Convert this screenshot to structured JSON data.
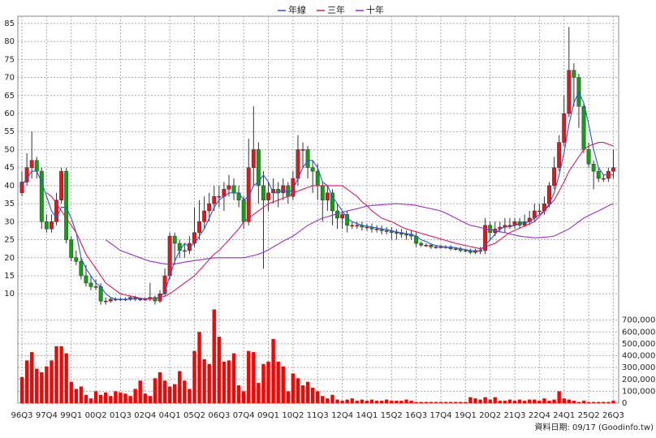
{
  "chart_data": {
    "type": "candlestick",
    "source_note": "資料日期: 09/17  (Goodinfo.tw)",
    "categories": [
      "96Q3",
      null,
      null,
      null,
      null,
      "97Q4",
      null,
      null,
      null,
      null,
      "99Q1",
      null,
      null,
      null,
      null,
      "00Q2",
      null,
      null,
      null,
      null,
      "01Q3",
      null,
      null,
      null,
      null,
      "02Q4",
      null,
      null,
      null,
      null,
      "04Q1",
      null,
      null,
      null,
      null,
      "05Q2",
      null,
      null,
      null,
      null,
      "06Q3",
      null,
      null,
      null,
      null,
      "07Q4",
      null,
      null,
      null,
      null,
      "09Q1",
      null,
      null,
      null,
      null,
      "10Q2",
      null,
      null,
      null,
      null,
      "11Q3",
      null,
      null,
      null,
      null,
      "12Q4",
      null,
      null,
      null,
      null,
      "14Q1",
      null,
      null,
      null,
      null,
      "15Q2",
      null,
      null,
      null,
      null,
      "16Q3",
      null,
      null,
      null,
      null,
      "17Q4",
      null,
      null,
      null,
      null,
      "19Q1",
      null,
      null,
      null,
      null,
      "20Q2",
      null,
      null,
      null,
      null,
      "21Q3",
      null,
      null,
      null,
      null,
      "22Q4",
      null,
      null,
      null,
      null,
      "24Q1",
      null,
      null,
      null,
      null,
      "25Q2",
      null,
      null,
      null,
      null,
      "26Q3"
    ],
    "up_color": "#e8131f",
    "down_color": "#10a010",
    "open": [
      38,
      41,
      45,
      47,
      44,
      30,
      28,
      30,
      36,
      44,
      25,
      20,
      19,
      15,
      13,
      12,
      12,
      8,
      8,
      8.5,
      8.5,
      8.5,
      8.5,
      9,
      8.5,
      8.5,
      8.5,
      9,
      8,
      10,
      15,
      26,
      24,
      22,
      22,
      24,
      27,
      30,
      33,
      35,
      37,
      37,
      39,
      40,
      38,
      36,
      30,
      45,
      50,
      40,
      36,
      38,
      39,
      38,
      40,
      37,
      42,
      50,
      50,
      45,
      44,
      40,
      36,
      38,
      33,
      31,
      32,
      29,
      29,
      29,
      28.5,
      28.5,
      28,
      28,
      27.5,
      27.5,
      27,
      27,
      26.5,
      26.5,
      26,
      24,
      23.5,
      23.5,
      23,
      23,
      23,
      23,
      22.5,
      22.5,
      22,
      22,
      21.5,
      22,
      22,
      29,
      27,
      28,
      28.5,
      29,
      29,
      30,
      29,
      30,
      31,
      33,
      33,
      35,
      40,
      45,
      52,
      60,
      72,
      70,
      62,
      50,
      46,
      44,
      42,
      42,
      44
    ],
    "high": [
      44,
      49,
      55,
      48,
      45,
      32,
      32,
      38,
      45,
      45,
      26,
      22,
      20,
      18,
      15,
      14,
      13,
      9,
      9,
      9,
      9,
      9,
      9.5,
      9.5,
      9,
      9,
      13,
      9.5,
      11,
      17,
      27,
      27,
      25,
      24,
      26,
      34,
      36,
      37,
      38,
      40,
      40,
      41,
      43,
      42,
      40,
      37,
      53,
      62,
      52,
      44,
      41,
      42,
      41,
      42,
      41,
      44,
      54,
      52,
      51,
      47,
      46,
      41,
      40,
      39,
      35,
      33,
      33,
      30,
      30,
      30,
      29.5,
      29.5,
      29,
      29,
      28.5,
      28.5,
      28,
      28,
      27.5,
      27.5,
      27,
      24.5,
      24,
      24,
      23.5,
      23.5,
      23.5,
      23.5,
      23,
      23,
      22.5,
      22.5,
      22.5,
      23,
      31,
      30,
      30,
      30,
      31,
      31,
      31,
      31,
      32,
      33,
      35,
      35,
      37,
      41,
      48,
      54,
      65,
      84,
      74,
      71,
      63,
      52,
      47,
      45,
      43,
      45,
      50
    ],
    "low": [
      37,
      40,
      42,
      42,
      28,
      27,
      27,
      29,
      35,
      24,
      19,
      18,
      14,
      12,
      11,
      11,
      7,
      7,
      7.5,
      8,
      8,
      8,
      8,
      8,
      8,
      8,
      8,
      7,
      7.5,
      9.5,
      14,
      18,
      20,
      20,
      21,
      23,
      25,
      28,
      30,
      33,
      34,
      33,
      37,
      36,
      34,
      28,
      29,
      40,
      35,
      17,
      33,
      35,
      34,
      36,
      35,
      36,
      40,
      45,
      42,
      38,
      36,
      30,
      33,
      29,
      28,
      28,
      27,
      28,
      28,
      27.5,
      27.5,
      27,
      27,
      26.5,
      26.5,
      25,
      25,
      25.5,
      25,
      25,
      23,
      23,
      23,
      22.5,
      22.5,
      22.5,
      22.5,
      22,
      22,
      21.5,
      21.5,
      21,
      21,
      21,
      21,
      25,
      26,
      27,
      27,
      28,
      28,
      28,
      28.5,
      29,
      30,
      32,
      32,
      34,
      39,
      44,
      51,
      59,
      62,
      56,
      49,
      45,
      39,
      41,
      41,
      41,
      42
    ],
    "close": [
      41,
      45,
      47,
      44,
      30,
      28,
      30,
      36,
      44,
      25,
      20,
      19,
      15,
      13,
      12,
      12,
      8,
      8,
      8.5,
      8.5,
      8.5,
      8.5,
      9,
      8.5,
      8.5,
      8.5,
      9,
      8,
      10,
      15,
      26,
      24,
      22,
      22,
      24,
      27,
      30,
      33,
      35,
      37,
      37,
      39,
      40,
      38,
      36,
      30,
      45,
      50,
      40,
      36,
      38,
      39,
      38,
      40,
      37,
      42,
      50,
      50,
      45,
      44,
      40,
      36,
      38,
      33,
      31,
      32,
      29,
      29,
      29,
      28.5,
      28.5,
      28,
      28,
      27.5,
      27.5,
      27,
      27,
      26.5,
      26.5,
      26,
      24,
      23.5,
      23.5,
      23,
      23,
      23,
      23,
      22.5,
      22.5,
      22,
      22,
      21.5,
      22,
      22,
      29,
      27,
      28,
      28.5,
      29,
      29,
      30,
      29,
      30,
      31,
      33,
      33,
      35,
      40,
      45,
      52,
      60,
      72,
      70,
      62,
      50,
      46,
      44,
      42,
      42,
      44,
      45
    ],
    "series": [
      {
        "name": "年線",
        "color": "#2457d6",
        "values": [
          40,
          42,
          44,
          44,
          41,
          37,
          33,
          31,
          34,
          34,
          31,
          27,
          20,
          17,
          15,
          13,
          12,
          10,
          9,
          8.5,
          8.5,
          8.5,
          8.5,
          8.7,
          8.7,
          8.6,
          8.7,
          8.7,
          9,
          10.5,
          15,
          19,
          22,
          24,
          23,
          24,
          26,
          28,
          31,
          34,
          36,
          37,
          38,
          38,
          38,
          36,
          37,
          40,
          41,
          43,
          41,
          38,
          38,
          39,
          38,
          39,
          42,
          45,
          47,
          47,
          45,
          41,
          40,
          37,
          35,
          33,
          31,
          30,
          29.5,
          29,
          28.8,
          28.5,
          28.3,
          28,
          27.8,
          27.5,
          27.2,
          26.9,
          26.7,
          26.5,
          26,
          25,
          24.5,
          23.8,
          23.4,
          23.2,
          23,
          22.9,
          22.8,
          22.5,
          22.3,
          22,
          21.9,
          21.9,
          23.5,
          25,
          26.5,
          28,
          28.5,
          28.6,
          29,
          29.5,
          29.8,
          30,
          31,
          32,
          33,
          35,
          38,
          43,
          49,
          57,
          63,
          66,
          63,
          57,
          50,
          45,
          43,
          43,
          43
        ]
      },
      {
        "name": "三年",
        "color": "#d81b60",
        "values": [
          null,
          null,
          null,
          null,
          null,
          38,
          37,
          35,
          33,
          31,
          29,
          27,
          24,
          21,
          19,
          17,
          15,
          13,
          12,
          11,
          10,
          9.7,
          9.4,
          9.1,
          8.8,
          8.6,
          8.6,
          8.7,
          9,
          9.3,
          10,
          11,
          12,
          13,
          14,
          15,
          16.5,
          18,
          19.5,
          21,
          22,
          23.5,
          25,
          26.5,
          28,
          30,
          31,
          32,
          33,
          34,
          35,
          35.5,
          36,
          36.5,
          37,
          38,
          38.5,
          39,
          39.5,
          40,
          40,
          40,
          40,
          40,
          40,
          40,
          39,
          38,
          37,
          35.5,
          34.5,
          33,
          32,
          31,
          30.5,
          30,
          29.3,
          28.6,
          28,
          27.6,
          27.2,
          26.8,
          26.4,
          26,
          25.6,
          25.2,
          24.8,
          24.4,
          24,
          23.7,
          23.4,
          23.1,
          22.8,
          22.5,
          23,
          23.5,
          24,
          25,
          26,
          27,
          27.6,
          28.2,
          28.8,
          29.4,
          30,
          31.5,
          33,
          34.5,
          36,
          38.5,
          41,
          44,
          46,
          48,
          50,
          51,
          51.5,
          52,
          52,
          51.5,
          51
        ]
      },
      {
        "name": "十年",
        "color": "#9b2fc8",
        "values": [
          null,
          null,
          null,
          null,
          null,
          null,
          null,
          null,
          null,
          null,
          null,
          null,
          null,
          null,
          null,
          null,
          null,
          25,
          24,
          23,
          22,
          21.5,
          21,
          20.5,
          20,
          19.5,
          19,
          18.8,
          18.5,
          18.3,
          18.2,
          18.3,
          18.5,
          18.8,
          19,
          19.2,
          19.4,
          19.6,
          19.8,
          20,
          20,
          20,
          20,
          20,
          20,
          20,
          20.3,
          20.6,
          21,
          21.5,
          22.2,
          23,
          23.8,
          24.6,
          25.3,
          26,
          27,
          28,
          29,
          29.7,
          30.4,
          31,
          31.4,
          31.8,
          32.2,
          32.6,
          33,
          33.3,
          33.6,
          34,
          34.3,
          34.5,
          34.6,
          34.7,
          34.8,
          34.9,
          35,
          34.9,
          34.8,
          34.7,
          34.5,
          34.2,
          33.9,
          33.6,
          33.3,
          33,
          32.4,
          31.7,
          31,
          30.3,
          29.6,
          29,
          28.7,
          28.4,
          28,
          27.8,
          27.5,
          27.2,
          27,
          26.6,
          26.3,
          26,
          25.8,
          25.7,
          25.5,
          25.6,
          25.7,
          25.8,
          26,
          26.7,
          27.3,
          28,
          29,
          30,
          31,
          31.7,
          32.4,
          33,
          33.7,
          34.4,
          35
        ]
      }
    ],
    "ylim": [
      6,
      87
    ],
    "yticks": [
      10,
      15,
      20,
      25,
      30,
      35,
      40,
      45,
      50,
      55,
      60,
      65,
      70,
      75,
      80,
      85
    ],
    "grid": true,
    "legend": "top",
    "volume": {
      "color": "#ff0000",
      "ylim": [
        0,
        800000
      ],
      "yticks": [
        0,
        {
          "value": 100000,
          "label": "100,000"
        },
        {
          "value": 200000,
          "label": "200,000"
        },
        {
          "value": 300000,
          "label": "300,000"
        },
        {
          "value": 400000,
          "label": "400,000"
        },
        {
          "value": 500000,
          "label": "500,000"
        },
        {
          "value": 600000,
          "label": "600,000"
        },
        {
          "value": 700000,
          "label": "700,000"
        }
      ],
      "values": [
        220000,
        360000,
        430000,
        290000,
        260000,
        310000,
        360000,
        480000,
        480000,
        420000,
        180000,
        120000,
        140000,
        70000,
        40000,
        100000,
        70000,
        90000,
        60000,
        100000,
        90000,
        80000,
        60000,
        120000,
        190000,
        80000,
        60000,
        210000,
        260000,
        190000,
        140000,
        160000,
        270000,
        190000,
        120000,
        440000,
        600000,
        370000,
        330000,
        790000,
        560000,
        350000,
        360000,
        420000,
        150000,
        100000,
        440000,
        430000,
        170000,
        330000,
        350000,
        540000,
        350000,
        310000,
        100000,
        250000,
        210000,
        150000,
        180000,
        130000,
        100000,
        60000,
        40000,
        70000,
        30000,
        20000,
        30000,
        40000,
        20000,
        30000,
        20000,
        30000,
        20000,
        20000,
        30000,
        20000,
        20000,
        20000,
        30000,
        20000,
        10000,
        10000,
        10000,
        10000,
        10000,
        10000,
        10000,
        10000,
        10000,
        10000,
        10000,
        50000,
        40000,
        30000,
        50000,
        30000,
        50000,
        20000,
        20000,
        30000,
        20000,
        30000,
        20000,
        30000,
        30000,
        20000,
        40000,
        20000,
        30000,
        100000,
        40000,
        30000,
        20000,
        10000,
        20000,
        10000,
        10000,
        10000,
        10000,
        10000,
        20000
      ]
    }
  }
}
